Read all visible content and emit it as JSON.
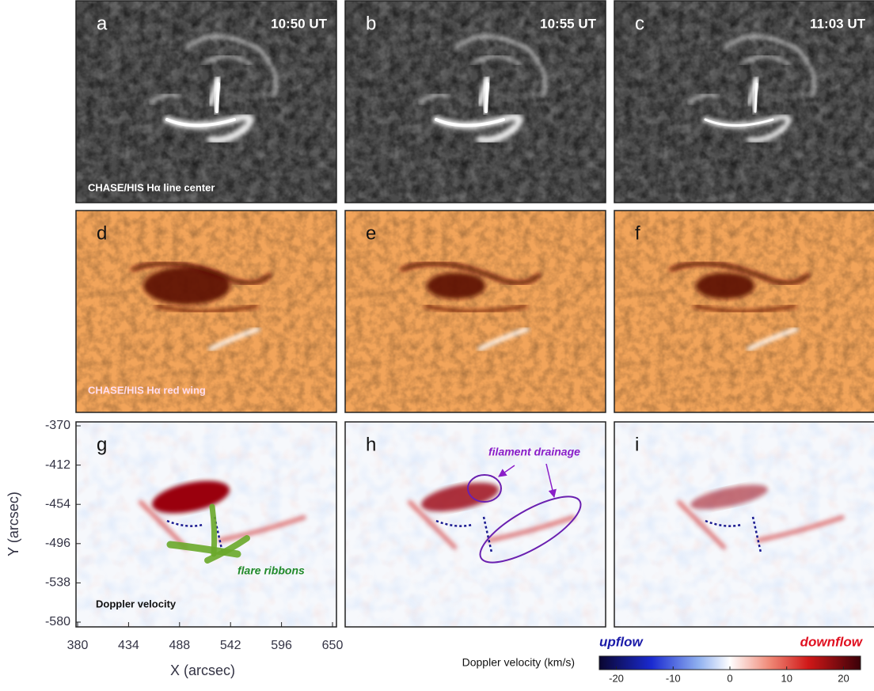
{
  "panels": [
    {
      "letter": "a",
      "time": "10:50 UT"
    },
    {
      "letter": "b",
      "time": "10:55 UT"
    },
    {
      "letter": "c",
      "time": "11:03 UT"
    },
    {
      "letter": "d"
    },
    {
      "letter": "e"
    },
    {
      "letter": "f"
    },
    {
      "letter": "g"
    },
    {
      "letter": "h"
    },
    {
      "letter": "i"
    }
  ],
  "row_labels": [
    "CHASE/HIS Hα line center",
    "CHASE/HIS Hα red wing",
    "Doppler velocity"
  ],
  "annotations": {
    "flare_ribbons": "flare ribbons",
    "filament_drainage": "filament drainage"
  },
  "axes": {
    "x_label": "X (arcsec)",
    "y_label": "Y (arcsec)",
    "xticks": [
      380,
      434,
      488,
      542,
      596,
      650
    ],
    "yticks": [
      -370,
      -412,
      -454,
      -496,
      -538,
      -580
    ]
  },
  "colorbar": {
    "label": "Doppler velocity (km/s)",
    "left_label": "upflow",
    "right_label": "downflow",
    "ticks": [
      -20,
      -10,
      0,
      10,
      20
    ],
    "range": [
      -23,
      23
    ]
  }
}
